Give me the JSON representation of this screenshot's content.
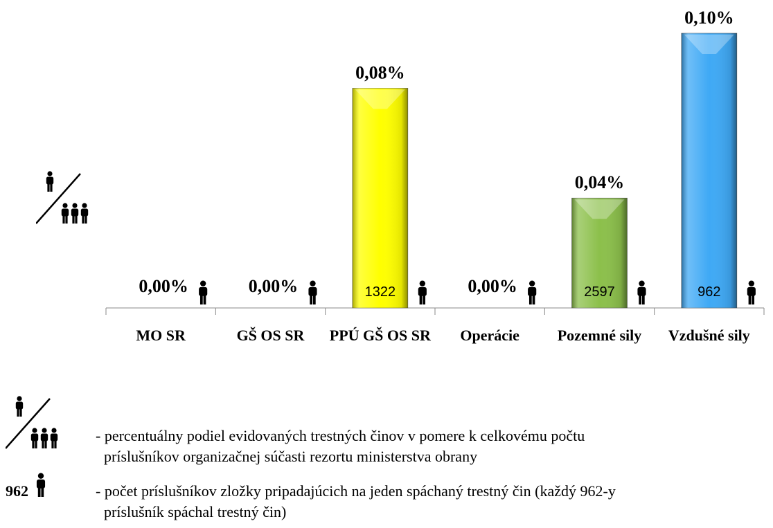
{
  "chart_data": {
    "type": "bar",
    "categories": [
      "MO SR",
      "GŠ OS SR",
      "PPÚ GŠ OS SR",
      "Operácie",
      "Pozemné sily",
      "Vzdušné sily"
    ],
    "values": [
      0,
      0,
      0.08,
      0,
      0.04,
      0.1
    ],
    "value_labels": [
      "0,00%",
      "0,00%",
      "0,08%",
      "0,00%",
      "0,04%",
      "0,10%"
    ],
    "members_per_crime": [
      null,
      null,
      1322,
      null,
      2597,
      962
    ],
    "colors": [
      null,
      null,
      "#ffff00",
      null,
      "#8cc04b",
      "#3fa9f5"
    ]
  },
  "notes": [
    {
      "lines": [
        "- percentuálny podiel evidovaných trestných činov v pomere k celkovému počtu",
        "príslušníkov organizačnej súčasti rezortu ministerstva obrany"
      ]
    },
    {
      "example": 962,
      "lines": [
        "- počet príslušníkov zložky pripadajúcich na jeden spáchaný trestný čin (každý 962-y",
        "príslušník spáchal trestný čin)"
      ]
    }
  ]
}
